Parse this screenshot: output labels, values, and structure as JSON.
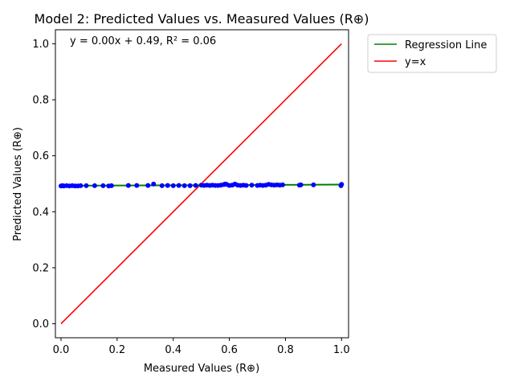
{
  "chart_data": {
    "type": "scatter",
    "title": "Model 2: Predicted Values vs. Measured Values (R⊕)",
    "xlabel": "Measured Values (R⊕)",
    "ylabel": "Predicted Values (R⊕)",
    "xlim": [
      -0.02,
      1.025
    ],
    "ylim": [
      -0.05,
      1.05
    ],
    "x_ticks": [
      0.0,
      0.2,
      0.4,
      0.6,
      0.8,
      1.0
    ],
    "y_ticks": [
      0.0,
      0.2,
      0.4,
      0.6,
      0.8,
      1.0
    ],
    "x_tick_labels": [
      "0.0",
      "0.2",
      "0.4",
      "0.6",
      "0.8",
      "1.0"
    ],
    "y_tick_labels": [
      "0.0",
      "0.2",
      "0.4",
      "0.6",
      "0.8",
      "1.0"
    ],
    "grid": false,
    "annotation": "y = 0.00x + 0.49, R² = 0.06",
    "legend": {
      "placement": "outside-top-right",
      "entries": [
        {
          "label": "Regression Line",
          "color": "#008000"
        },
        {
          "label": "y=x",
          "color": "#ff0000"
        }
      ]
    },
    "regression_line": {
      "slope": 0.004,
      "intercept": 0.493,
      "x_range": [
        0.0,
        1.0
      ],
      "color": "#008000"
    },
    "identity_line": {
      "x_range": [
        0.0,
        1.0
      ],
      "color": "#ff0000"
    },
    "scatter_points": {
      "color": "#0000ff",
      "x": [
        0.0,
        0.005,
        0.01,
        0.02,
        0.03,
        0.04,
        0.05,
        0.06,
        0.07,
        0.09,
        0.12,
        0.15,
        0.17,
        0.18,
        0.24,
        0.27,
        0.31,
        0.33,
        0.36,
        0.38,
        0.4,
        0.42,
        0.44,
        0.46,
        0.48,
        0.5,
        0.51,
        0.52,
        0.53,
        0.54,
        0.55,
        0.56,
        0.57,
        0.58,
        0.585,
        0.59,
        0.6,
        0.61,
        0.62,
        0.63,
        0.64,
        0.65,
        0.66,
        0.68,
        0.7,
        0.71,
        0.72,
        0.73,
        0.74,
        0.75,
        0.76,
        0.77,
        0.78,
        0.79,
        0.85,
        0.855,
        0.9,
        0.998,
        1.0
      ],
      "y": [
        0.492,
        0.493,
        0.492,
        0.493,
        0.492,
        0.493,
        0.492,
        0.492,
        0.493,
        0.493,
        0.493,
        0.493,
        0.492,
        0.493,
        0.494,
        0.494,
        0.494,
        0.499,
        0.493,
        0.494,
        0.493,
        0.494,
        0.493,
        0.493,
        0.494,
        0.495,
        0.494,
        0.495,
        0.494,
        0.495,
        0.494,
        0.494,
        0.495,
        0.497,
        0.499,
        0.498,
        0.494,
        0.495,
        0.499,
        0.495,
        0.494,
        0.495,
        0.494,
        0.495,
        0.494,
        0.495,
        0.494,
        0.495,
        0.498,
        0.496,
        0.495,
        0.496,
        0.495,
        0.496,
        0.495,
        0.496,
        0.496,
        0.493,
        0.498
      ]
    }
  }
}
